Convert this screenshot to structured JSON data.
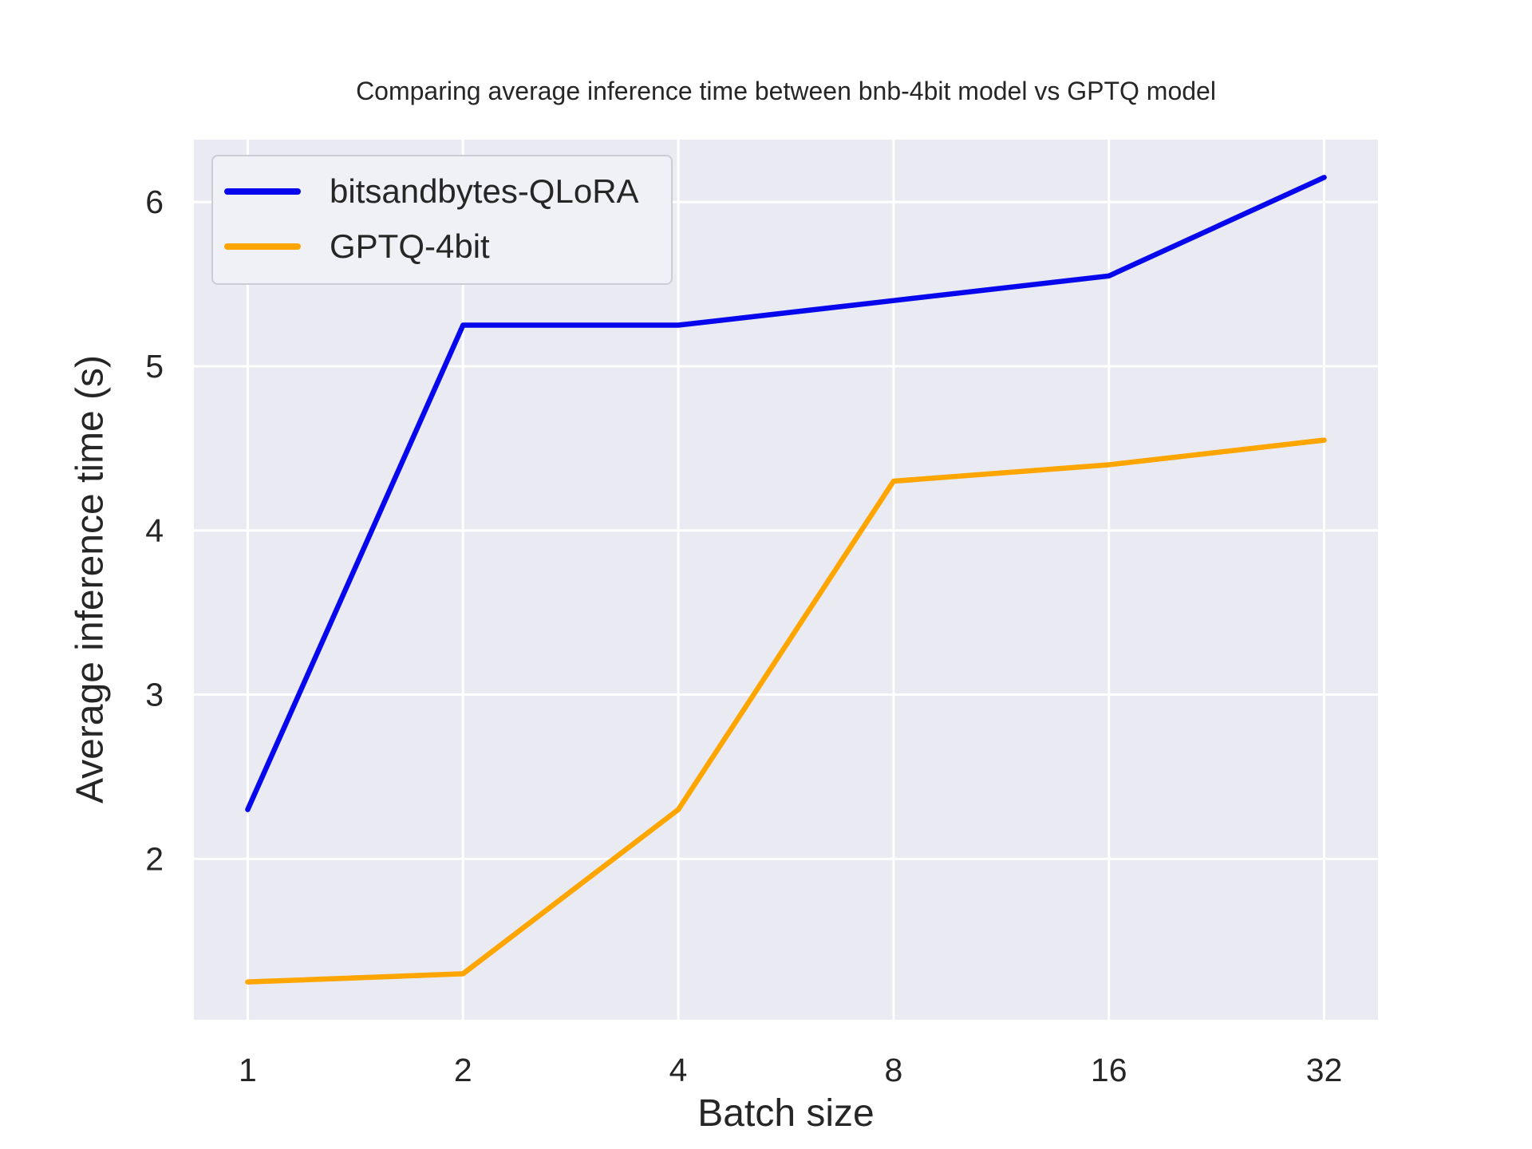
{
  "chart_data": {
    "type": "line",
    "title": "Comparing average inference time between bnb-4bit model vs GPTQ model",
    "xlabel": "Batch size",
    "ylabel": "Average inference time (s)",
    "x_scale": "log2",
    "categories": [
      "1",
      "2",
      "4",
      "8",
      "16",
      "32"
    ],
    "x": [
      1,
      2,
      4,
      8,
      16,
      32
    ],
    "series": [
      {
        "name": "bitsandbytes-QLoRA",
        "color": "#0707ee",
        "values": [
          2.3,
          5.25,
          5.25,
          5.4,
          5.55,
          6.15
        ]
      },
      {
        "name": "GPTQ-4bit",
        "color": "#ffa500",
        "values": [
          1.25,
          1.3,
          2.3,
          4.3,
          4.4,
          4.55
        ]
      }
    ],
    "yticks": [
      2,
      3,
      4,
      5,
      6
    ],
    "xlim_log2": [
      -0.25,
      5.25
    ],
    "ylim": [
      1.02,
      6.38
    ],
    "grid": true,
    "legend_position": "upper left",
    "plot_bg_color": "#eaeaf2",
    "grid_color": "#ffffff",
    "text_color": "#262626"
  }
}
